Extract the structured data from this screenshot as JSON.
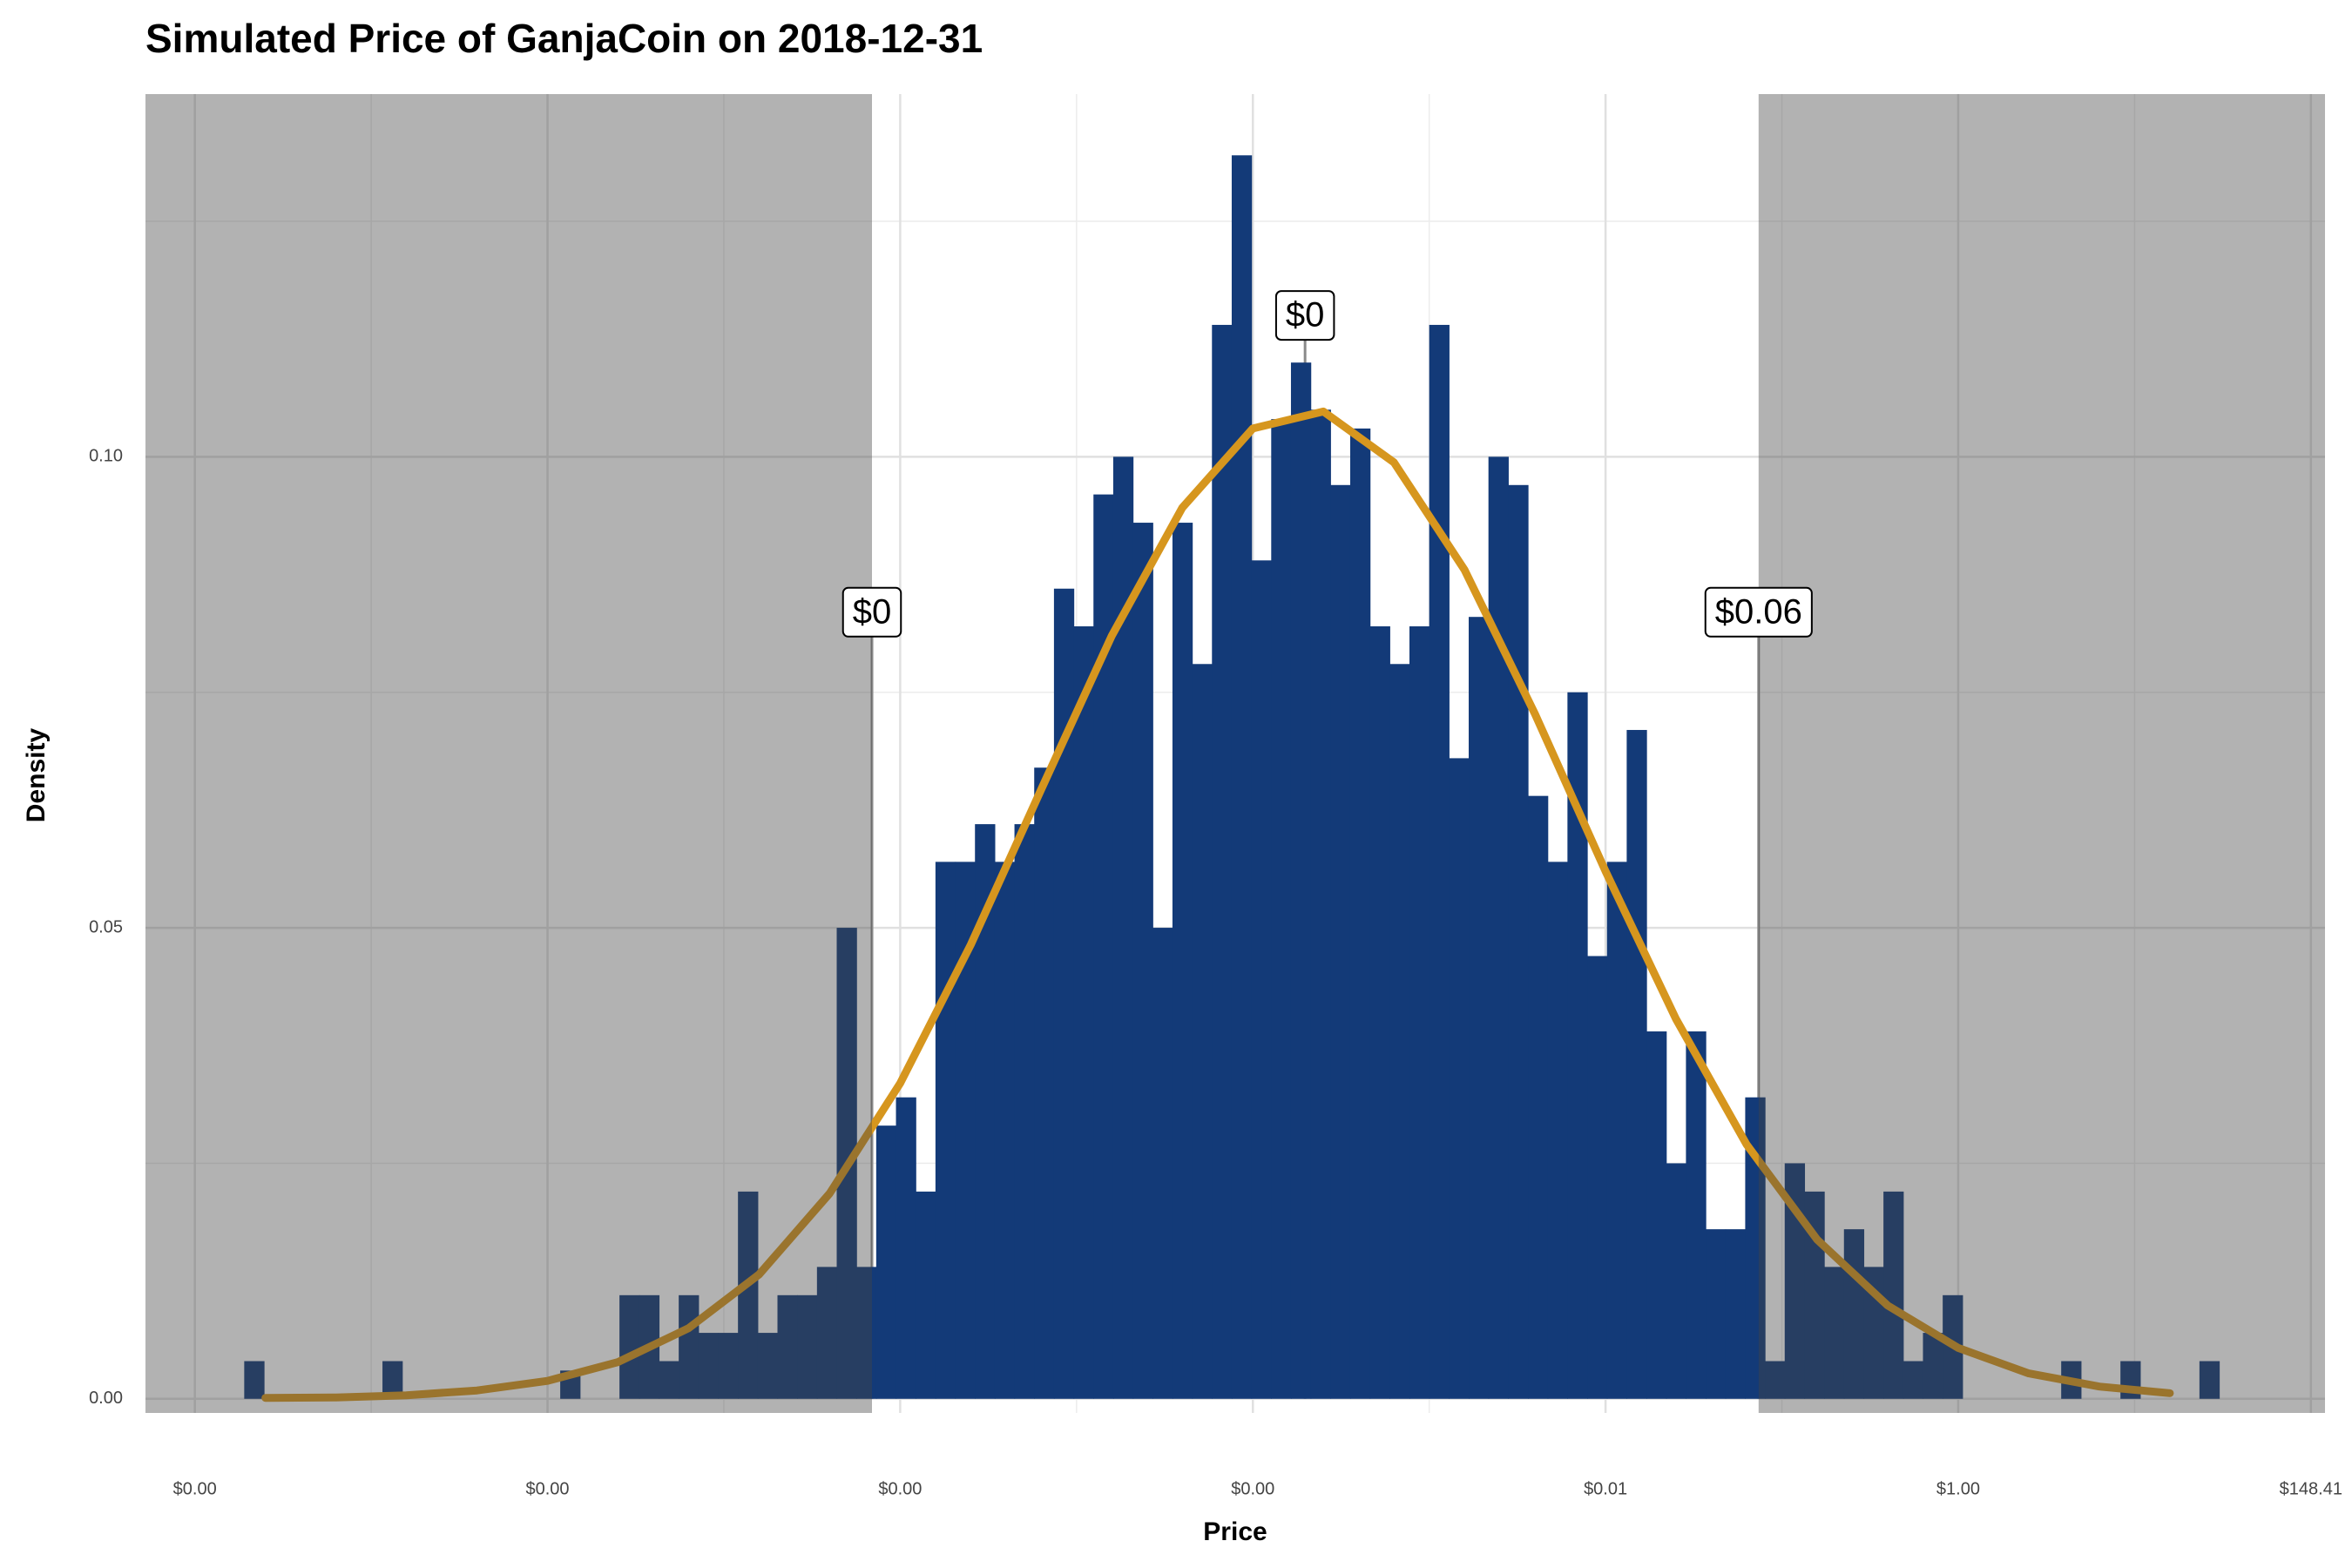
{
  "chart_data": {
    "type": "histogram",
    "title": "Simulated Price of GanjaCoin on 2018-12-31",
    "x_label": "Price",
    "y_label": "Density",
    "color": "#133a78",
    "bins": [
      -24.3,
      -24.02,
      -23.74,
      -23.46,
      -23.18,
      -22.9,
      -22.62,
      -22.34,
      -22.06,
      -21.78,
      -21.5,
      -21.22,
      -20.94,
      -20.66,
      -20.38,
      -20.1,
      -19.82,
      -19.54,
      -19.26,
      -18.98,
      -18.7,
      -18.42,
      -18.14,
      -17.86,
      -17.58,
      -17.3,
      -17.02,
      -16.74,
      -16.46,
      -16.18,
      -15.9,
      -15.62,
      -15.34,
      -15.06,
      -14.78,
      -14.5,
      -14.22,
      -13.94,
      -13.66,
      -13.38,
      -13.1,
      -12.82,
      -12.54,
      -12.26,
      -11.98,
      -11.7,
      -11.42,
      -11.14,
      -10.86,
      -10.58,
      -10.3,
      -10.02,
      -9.74,
      -9.46,
      -9.18,
      -8.9,
      -8.62,
      -8.34,
      -8.06,
      -7.78,
      -7.5,
      -7.22,
      -6.94,
      -6.66,
      -6.38,
      -6.1,
      -5.82,
      -5.54,
      -5.26,
      -4.98,
      -4.7,
      -4.42,
      -4.14,
      -3.86,
      -3.58,
      -3.3,
      -3.02,
      -2.74,
      -2.46,
      -2.18,
      -1.9,
      -1.62,
      -1.34,
      -1.06,
      -0.78,
      -0.5,
      -0.22,
      0.06,
      0.34,
      0.62,
      0.9,
      1.18,
      1.46,
      1.74,
      2.02,
      2.3,
      2.58,
      2.86,
      3.14,
      3.42,
      3.7
    ],
    "values": [
      0.004,
      0,
      0,
      0,
      0,
      0,
      0,
      0.004,
      0,
      0,
      0,
      0,
      0,
      0,
      0,
      0,
      0.003,
      0,
      0,
      0.011,
      0.011,
      0.004,
      0.011,
      0.007,
      0.007,
      0.022,
      0.007,
      0.011,
      0.011,
      0.014,
      0.05,
      0.014,
      0.029,
      0.032,
      0.022,
      0.057,
      0.057,
      0.061,
      0.057,
      0.061,
      0.067,
      0.086,
      0.082,
      0.096,
      0.1,
      0.093,
      0.05,
      0.093,
      0.078,
      0.114,
      0.132,
      0.089,
      0.104,
      0.11,
      0.105,
      0.097,
      0.103,
      0.082,
      0.078,
      0.082,
      0.114,
      0.068,
      0.083,
      0.1,
      0.097,
      0.064,
      0.057,
      0.075,
      0.047,
      0.057,
      0.071,
      0.039,
      0.025,
      0.039,
      0.018,
      0.018,
      0.032,
      0.004,
      0.025,
      0.022,
      0.014,
      0.018,
      0.014,
      0.022,
      0.004,
      0.007,
      0.011,
      0,
      0,
      0,
      0,
      0,
      0.004,
      0,
      0,
      0.004,
      0,
      0,
      0,
      0.004
    ],
    "density_curve": {
      "color": "#d6961e",
      "x": [
        -24,
        -23,
        -22,
        -21,
        -20,
        -19,
        -18,
        -17,
        -16,
        -15,
        -14,
        -13,
        -12,
        -11,
        -10,
        -9,
        -8,
        -7,
        -6,
        -5,
        -4,
        -3,
        -2,
        -1,
        0,
        1,
        2,
        3
      ],
      "y": [
        0.0001,
        0.00015,
        0.00038,
        0.00089,
        0.0019,
        0.0039,
        0.0075,
        0.0132,
        0.0218,
        0.0335,
        0.0482,
        0.0647,
        0.081,
        0.0946,
        0.103,
        0.1048,
        0.0994,
        0.088,
        0.0727,
        0.056,
        0.0403,
        0.027,
        0.0169,
        0.0099,
        0.0054,
        0.0027,
        0.0013,
        0.0006
      ]
    },
    "annotations": [
      {
        "label": "$0",
        "x": -15.4,
        "y": 0.0835
      },
      {
        "label": "$0",
        "x": -9.26,
        "y": 0.115
      },
      {
        "label": "$0.06",
        "x": -2.83,
        "y": 0.0835
      }
    ],
    "shade_outside_annotations": true,
    "shade_color": "rgba(69,69,69,0.41)",
    "xlim": [
      -25.7,
      5.2
    ],
    "ylim": [
      -0.0015,
      0.1385
    ],
    "xticks": [
      {
        "value": -25,
        "label": "$0.00"
      },
      {
        "value": -20,
        "label": "$0.00"
      },
      {
        "value": -15,
        "label": "$0.00"
      },
      {
        "value": -10,
        "label": "$0.00"
      },
      {
        "value": -5,
        "label": "$0.01"
      },
      {
        "value": 0,
        "label": "$1.00"
      },
      {
        "value": 5,
        "label": "$148.41"
      }
    ],
    "xminor": [
      -22.5,
      -17.5,
      -12.5,
      -7.5,
      -2.5,
      2.5
    ],
    "yticks": [
      {
        "value": 0,
        "label": "0.00"
      },
      0.05,
      {
        "value": 0.1,
        "label": "0.10"
      }
    ],
    "yminor": [
      0.025,
      0.075,
      0.125
    ],
    "grid": true
  }
}
